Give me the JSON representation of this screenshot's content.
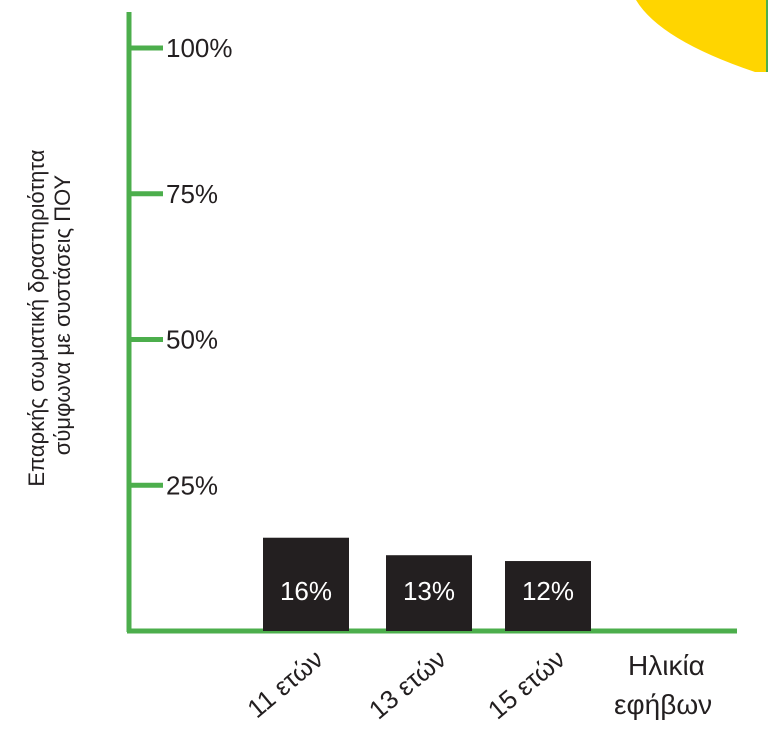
{
  "chart_data": {
    "type": "bar",
    "title": "",
    "xlabel": "Ηλικία εφήβων",
    "xlabel_lines": [
      "Ηλικία",
      "εφήβων"
    ],
    "ylabel": "Επαρκής σωματική δραστηριότητα σύμφωνα με συστάσεις ΠΟΥ",
    "ylabel_lines": [
      "Επαρκής σωματική δραστηριότητα",
      "σύμφωνα με συστάσεις ΠΟΥ"
    ],
    "categories": [
      "11 ετών",
      "13 ετών",
      "15 ετών"
    ],
    "values": [
      16,
      13,
      12
    ],
    "value_labels": [
      "16%",
      "13%",
      "12%"
    ],
    "ylim": [
      0,
      100
    ],
    "yticks": [
      25,
      50,
      75,
      100
    ],
    "ytick_labels": [
      "25%",
      "50%",
      "75%",
      "100%"
    ],
    "grid": false,
    "legend": "none"
  },
  "colors": {
    "axis": "#4cae4c",
    "bar": "#231f20",
    "bar_label": "#ffffff",
    "text": "#231f20",
    "accent": "#ffd500"
  }
}
